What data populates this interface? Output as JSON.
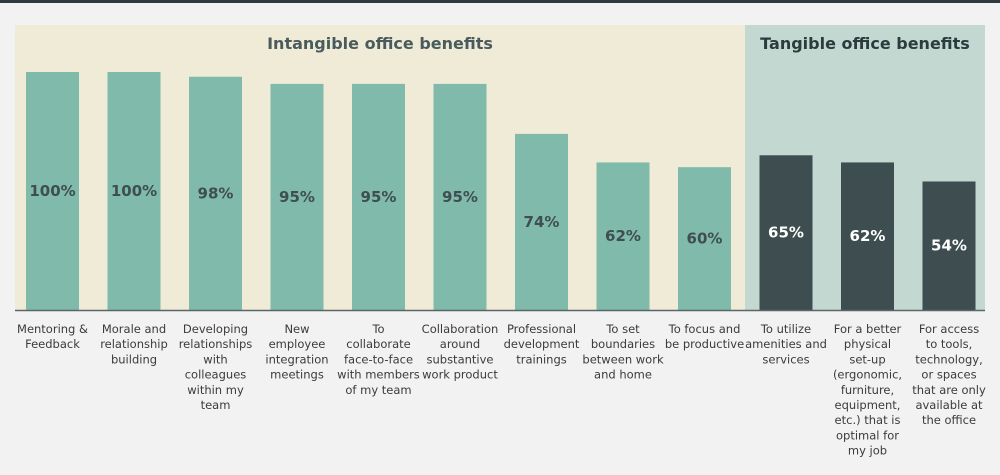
{
  "chart_data": {
    "type": "bar",
    "title": "",
    "xlabel": "",
    "ylabel": "",
    "ylim": [
      0,
      100
    ],
    "value_format": "percent",
    "groups": [
      {
        "name": "Intangible office benefits",
        "bg_color": "#f0ebd6",
        "bar_color": "#7fbaab",
        "label_color": "#3f4e50",
        "title_color": "#4a5b5d",
        "categories": [
          "Mentoring & Feedback",
          "Morale and relationship building",
          "Developing relationships with colleagues within my team",
          "New employee integration meetings",
          "To collaborate face-to-face with members of my team",
          "Collaboration around substantive work product",
          "Professional development trainings",
          "To set boundaries between work and home",
          "To focus and be productive"
        ]
      },
      {
        "name": "Tangible office benefits",
        "bg_color": "#c3d8d0",
        "bar_color": "#3e4d50",
        "label_color": "#ffffff",
        "title_color": "#2c3b3d",
        "categories": [
          "To utilize amenities and services",
          "For a better physical set-up (ergonomic, furniture, equipment, etc.) that is optimal for my job",
          "For access to tools, technology, or spaces that are only available at the office"
        ]
      }
    ],
    "categories": [
      "Mentoring & Feedback",
      "Morale and relationship building",
      "Developing relationships with colleagues within my team",
      "New employee integration meetings",
      "To collaborate face-to-face with members of my team",
      "Collaboration around substantive work product",
      "Professional development trainings",
      "To set boundaries between work and home",
      "To focus and be productive",
      "To utilize amenities and services",
      "For a better physical set-up (ergonomic, furniture, equipment, etc.) that is optimal for my job",
      "For access to tools, technology, or spaces that are only available at the office"
    ],
    "values": [
      100,
      100,
      98,
      95,
      95,
      95,
      74,
      62,
      60,
      65,
      62,
      54
    ],
    "category_label_lines": [
      [
        "Mentoring &",
        "Feedback"
      ],
      [
        "Morale and",
        "relationship",
        "building"
      ],
      [
        "Developing",
        "relationships",
        "with",
        "colleagues",
        "within my",
        "team"
      ],
      [
        "New",
        "employee",
        "integration",
        "meetings"
      ],
      [
        "To",
        "collaborate",
        "face-to-face",
        "with members",
        "of my team"
      ],
      [
        "Collaboration",
        "around",
        "substantive",
        "work product"
      ],
      [
        "Professional",
        "development",
        "trainings"
      ],
      [
        "To set",
        "boundaries",
        "between work",
        "and home"
      ],
      [
        "To focus and",
        "be productive"
      ],
      [
        "To utilize",
        "amenities and",
        "services"
      ],
      [
        "For a better",
        "physical",
        "set-up",
        "(ergonomic,",
        "furniture,",
        "equipment,",
        "etc.) that is",
        "optimal for",
        "my job"
      ],
      [
        "For access",
        "to tools,",
        "technology,",
        "or spaces",
        "that are only",
        "available at",
        "the office"
      ]
    ]
  }
}
